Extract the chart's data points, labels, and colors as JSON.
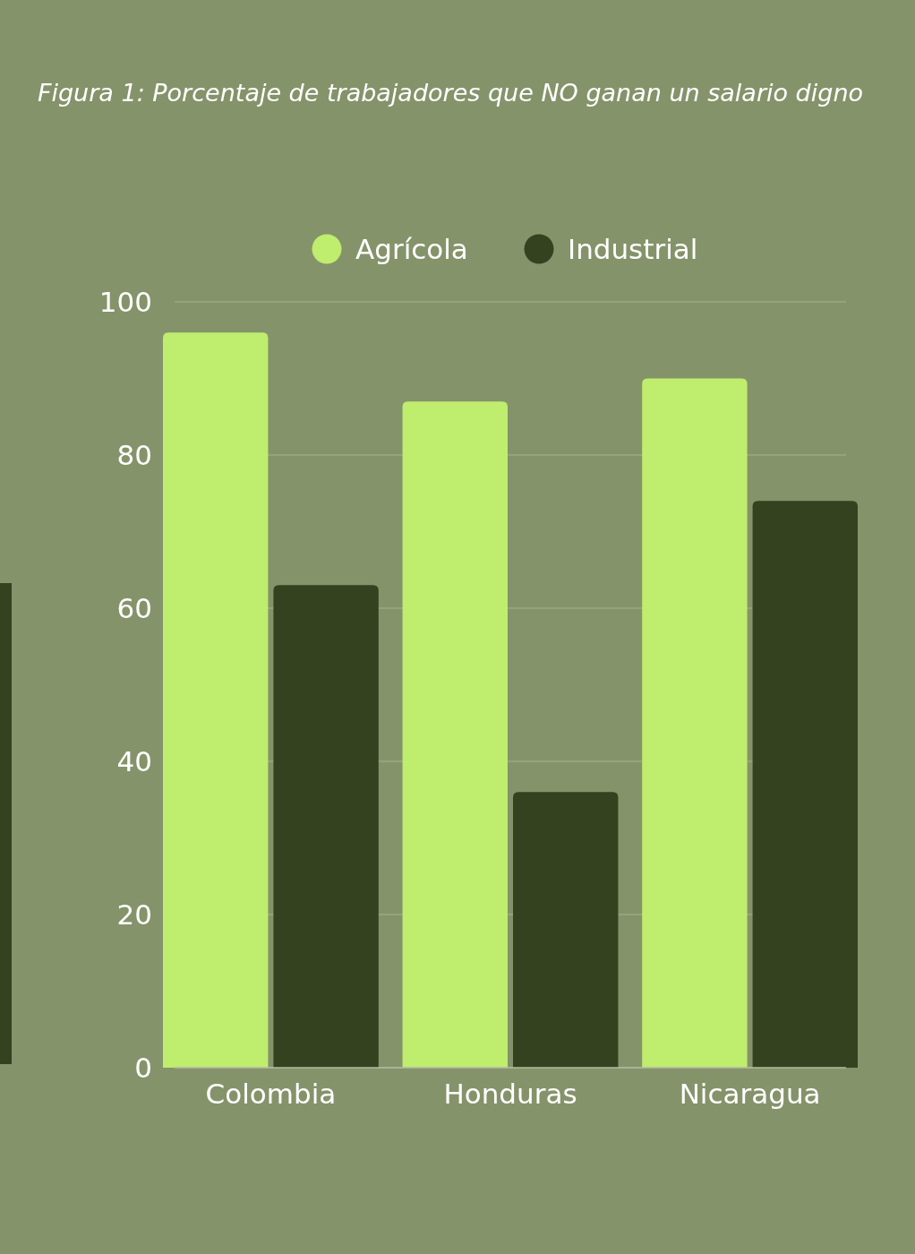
{
  "chart_data": {
    "type": "bar",
    "title": "Figura 1: Porcentaje de trabajadores que NO ganan un salario digno",
    "categories": [
      "Colombia",
      "Honduras",
      "Nicaragua"
    ],
    "series": [
      {
        "name": "Agrícola",
        "color": "#bfed6e",
        "values": [
          96,
          87,
          90
        ]
      },
      {
        "name": "Industrial",
        "color": "#354220",
        "values": [
          63,
          36,
          74
        ]
      }
    ],
    "ylim": [
      0,
      100
    ],
    "yticks": [
      0,
      20,
      40,
      60,
      80,
      100
    ],
    "grid": "y",
    "legend": "top"
  }
}
